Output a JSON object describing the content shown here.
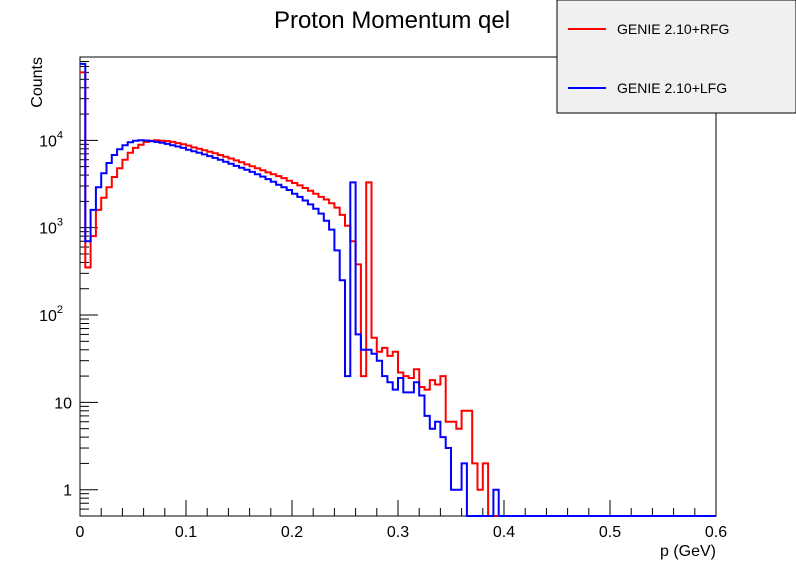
{
  "chart_data": {
    "type": "line",
    "title": "Proton Momentum qel",
    "xlabel": "p (GeV)",
    "ylabel": "Counts",
    "xlim": [
      0,
      0.6
    ],
    "ylim": [
      0.5,
      90000
    ],
    "yscale": "log",
    "grid": false,
    "legend_position": "top-right",
    "x_ticks": [
      {
        "value": 0,
        "label": "0"
      },
      {
        "value": 0.1,
        "label": "0.1"
      },
      {
        "value": 0.2,
        "label": "0.2"
      },
      {
        "value": 0.3,
        "label": "0.3"
      },
      {
        "value": 0.4,
        "label": "0.4"
      },
      {
        "value": 0.5,
        "label": "0.5"
      },
      {
        "value": 0.6,
        "label": "0.6"
      }
    ],
    "y_ticks": [
      {
        "value": 1,
        "label": "1"
      },
      {
        "value": 10,
        "label": "10"
      },
      {
        "value": 100,
        "label": "10",
        "exp": "2"
      },
      {
        "value": 1000,
        "label": "10",
        "exp": "3"
      },
      {
        "value": 10000,
        "label": "10",
        "exp": "4"
      }
    ],
    "bin_width": 0.005,
    "series": [
      {
        "name": "GENIE 2.10+RFG",
        "color": "#ff0000",
        "values": [
          60000,
          350,
          800,
          1600,
          2200,
          2900,
          3800,
          4800,
          6000,
          7200,
          8200,
          8900,
          9600,
          9900,
          10000,
          9900,
          9800,
          9600,
          9300,
          9000,
          8700,
          8300,
          8000,
          7700,
          7400,
          7100,
          6800,
          6500,
          6200,
          5900,
          5600,
          5300,
          5050,
          4800,
          4550,
          4300,
          4100,
          3900,
          3700,
          3450,
          3250,
          3050,
          2850,
          2650,
          2450,
          2250,
          2100,
          1900,
          1700,
          1400,
          1050,
          700,
          380,
          20,
          3300,
          55,
          38,
          42,
          34,
          38,
          22,
          20,
          19,
          24,
          15,
          14,
          18,
          16,
          20,
          6,
          6,
          5,
          8,
          8,
          2,
          1,
          2,
          0,
          0,
          0,
          0,
          0,
          0,
          0,
          0,
          0,
          0,
          0,
          0,
          0,
          0,
          0,
          0,
          0,
          0,
          0,
          0,
          0,
          0,
          0,
          0,
          0,
          0,
          0,
          0,
          0,
          0,
          0,
          0,
          0,
          0,
          0,
          0,
          0,
          0,
          0,
          0,
          0,
          0,
          0
        ]
      },
      {
        "name": "GENIE 2.10+LFG",
        "color": "#0000ff",
        "values": [
          75000,
          700,
          1600,
          2900,
          4200,
          5500,
          6800,
          7900,
          8800,
          9500,
          9900,
          10000,
          9950,
          9800,
          9600,
          9400,
          9100,
          8800,
          8500,
          8200,
          7800,
          7500,
          7200,
          6900,
          6600,
          6300,
          6000,
          5700,
          5400,
          5100,
          4850,
          4600,
          4350,
          4100,
          3850,
          3600,
          3350,
          3100,
          2900,
          2700,
          2450,
          2250,
          2050,
          1850,
          1650,
          1450,
          1200,
          950,
          550,
          250,
          20,
          3300,
          60,
          40,
          40,
          36,
          30,
          20,
          17,
          14,
          19,
          13,
          13,
          17,
          12,
          7,
          5,
          6,
          4,
          3,
          1,
          1,
          2,
          0,
          0,
          0,
          0,
          0,
          1,
          0,
          0,
          0,
          0,
          0,
          0,
          0,
          0,
          0,
          0,
          0,
          0,
          0,
          0,
          0,
          0,
          0,
          0,
          0,
          0,
          0,
          0,
          0,
          0,
          0,
          0,
          0,
          0,
          0,
          0,
          0,
          0,
          0,
          0,
          0,
          0,
          0,
          0,
          0,
          0,
          0
        ]
      }
    ]
  }
}
